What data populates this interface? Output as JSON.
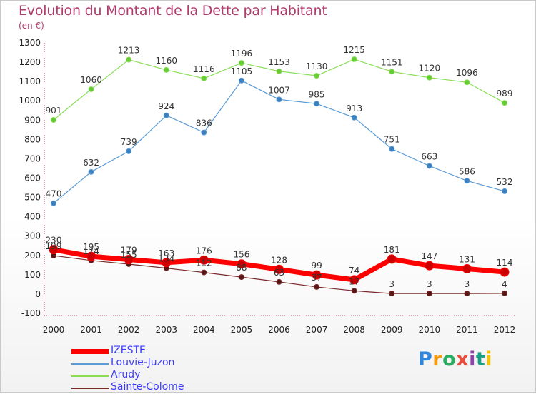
{
  "chart_data": {
    "type": "line",
    "title": "Evolution du Montant de la Dette par Habitant",
    "unit": "(en €)",
    "x": [
      "2000",
      "2001",
      "2002",
      "2003",
      "2004",
      "2005",
      "2006",
      "2007",
      "2008",
      "2009",
      "2010",
      "2011",
      "2012"
    ],
    "ylim": [
      -100,
      1300
    ],
    "yticks": [
      -100,
      0,
      100,
      200,
      300,
      400,
      500,
      600,
      700,
      800,
      900,
      1000,
      1100,
      1200,
      1300
    ],
    "grid": false,
    "legend_position": "bottom-left",
    "series": [
      {
        "name": "IZESTE",
        "color": "#ff0000",
        "point_color": "#cc0000",
        "width": 7,
        "radius": 6,
        "values": [
          230,
          195,
          179,
          163,
          176,
          156,
          128,
          99,
          74,
          181,
          147,
          131,
          114
        ],
        "labels": [
          "230",
          "195",
          "179",
          "163",
          "176",
          "156",
          "128",
          "99",
          "74",
          "181",
          "147",
          "131",
          "114"
        ]
      },
      {
        "name": "Louvie-Juzon",
        "color": "#5b9bd5",
        "point_color": "#3a7fc0",
        "width": 1.2,
        "radius": 3.5,
        "values": [
          470,
          632,
          739,
          924,
          836,
          1105,
          1007,
          985,
          913,
          751,
          663,
          586,
          532
        ],
        "labels": [
          "470",
          "632",
          "739",
          "924",
          "836",
          "1105",
          "1007",
          "985",
          "913",
          "751",
          "663",
          "586",
          "532"
        ]
      },
      {
        "name": "Arudy",
        "color": "#88dd55",
        "point_color": "#66cc33",
        "width": 1.2,
        "radius": 3.5,
        "values": [
          901,
          1060,
          1213,
          1160,
          1116,
          1196,
          1153,
          1130,
          1215,
          1151,
          1120,
          1096,
          989
        ],
        "labels": [
          "901",
          "1060",
          "1213",
          "1160",
          "1116",
          "1196",
          "1153",
          "1130",
          "1215",
          "1151",
          "1120",
          "1096",
          "989"
        ]
      },
      {
        "name": "Sainte-Colome",
        "color": "#7a2a2a",
        "point_color": "#5a1515",
        "width": 1.2,
        "radius": 3.5,
        "values": [
          199,
          174,
          155,
          134,
          112,
          88,
          63,
          37,
          17,
          3,
          3,
          3,
          4
        ],
        "labels": [
          "199",
          "174",
          "155",
          "134",
          "112",
          "88",
          "63",
          "37",
          "17",
          "3",
          "3",
          "3",
          "4"
        ]
      }
    ]
  },
  "branding": {
    "logo_text": "Proxiti",
    "logo_colors": [
      "#2e86de",
      "#f39c12",
      "#27ae60",
      "#e74c3c",
      "#8e44ad",
      "#16a085",
      "#f1c40f"
    ]
  }
}
